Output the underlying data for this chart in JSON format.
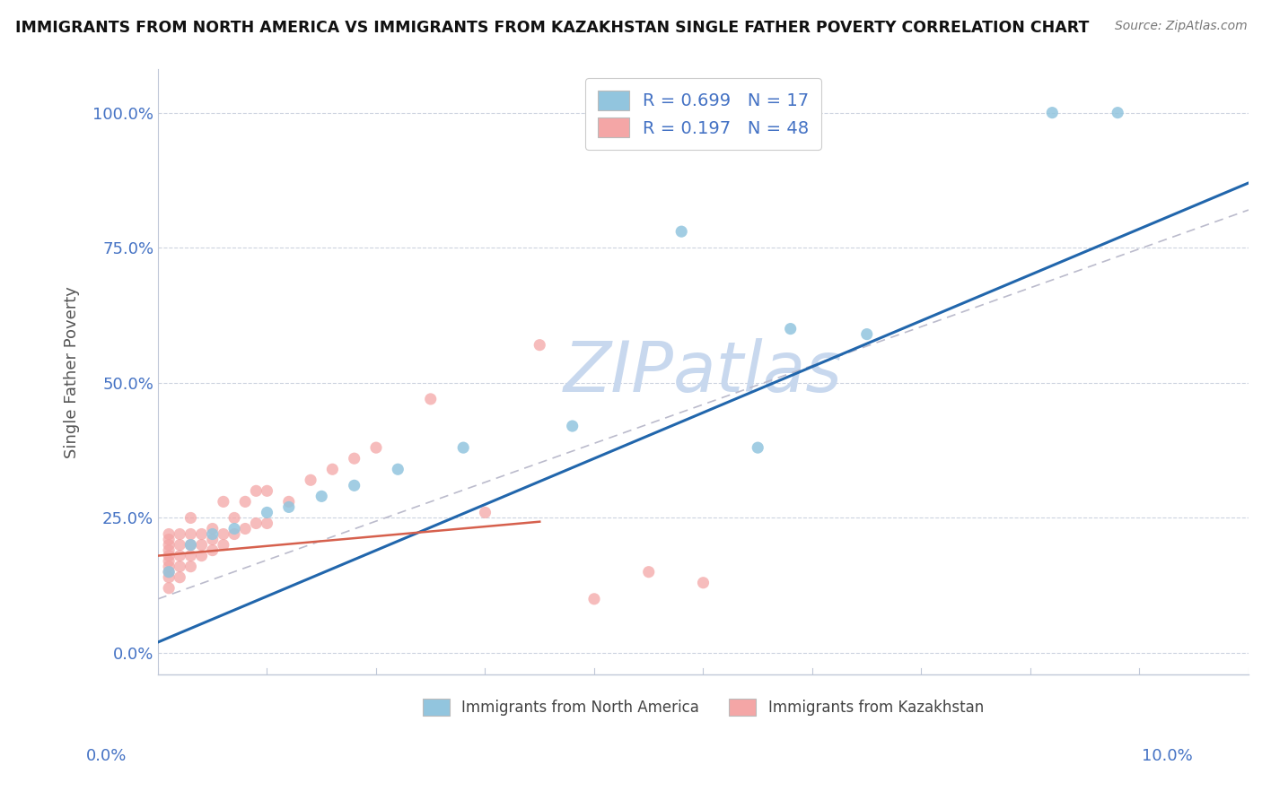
{
  "title": "IMMIGRANTS FROM NORTH AMERICA VS IMMIGRANTS FROM KAZAKHSTAN SINGLE FATHER POVERTY CORRELATION CHART",
  "source": "Source: ZipAtlas.com",
  "ylabel": "Single Father Poverty",
  "ytick_labels": [
    "0.0%",
    "25.0%",
    "50.0%",
    "75.0%",
    "100.0%"
  ],
  "ytick_values": [
    0.0,
    0.25,
    0.5,
    0.75,
    1.0
  ],
  "xlim": [
    0.0,
    0.1
  ],
  "ylim": [
    -0.04,
    1.08
  ],
  "r_north_america": 0.699,
  "n_north_america": 17,
  "r_kazakhstan": 0.197,
  "n_kazakhstan": 48,
  "color_north_america": "#92c5de",
  "color_kazakhstan": "#f4a6a6",
  "color_trendline_na": "#2166ac",
  "color_trendline_kz": "#d6604d",
  "color_trendline_dashed": "#bbbbcc",
  "watermark": "ZIPatlas",
  "watermark_color": "#c8d8ee",
  "na_intercept": 0.02,
  "na_slope": 8.5,
  "kz_intercept": 0.18,
  "kz_slope": 1.8,
  "na_x": [
    0.001,
    0.003,
    0.005,
    0.007,
    0.01,
    0.012,
    0.015,
    0.018,
    0.022,
    0.028,
    0.038,
    0.048,
    0.055,
    0.058,
    0.065,
    0.082,
    0.088
  ],
  "na_y": [
    0.15,
    0.2,
    0.22,
    0.23,
    0.26,
    0.27,
    0.29,
    0.31,
    0.34,
    0.38,
    0.42,
    0.78,
    0.38,
    0.6,
    0.59,
    1.0,
    1.0
  ],
  "kz_x": [
    0.001,
    0.001,
    0.001,
    0.001,
    0.001,
    0.001,
    0.001,
    0.001,
    0.001,
    0.001,
    0.002,
    0.002,
    0.002,
    0.002,
    0.002,
    0.003,
    0.003,
    0.003,
    0.003,
    0.003,
    0.004,
    0.004,
    0.004,
    0.005,
    0.005,
    0.005,
    0.006,
    0.006,
    0.006,
    0.007,
    0.007,
    0.008,
    0.008,
    0.009,
    0.009,
    0.01,
    0.01,
    0.012,
    0.014,
    0.016,
    0.018,
    0.02,
    0.025,
    0.03,
    0.035,
    0.04,
    0.045,
    0.05
  ],
  "kz_y": [
    0.12,
    0.14,
    0.15,
    0.16,
    0.17,
    0.18,
    0.19,
    0.2,
    0.21,
    0.22,
    0.14,
    0.16,
    0.18,
    0.2,
    0.22,
    0.16,
    0.18,
    0.2,
    0.22,
    0.25,
    0.18,
    0.2,
    0.22,
    0.19,
    0.21,
    0.23,
    0.2,
    0.22,
    0.28,
    0.22,
    0.25,
    0.23,
    0.28,
    0.24,
    0.3,
    0.24,
    0.3,
    0.28,
    0.32,
    0.34,
    0.36,
    0.38,
    0.47,
    0.26,
    0.57,
    0.1,
    0.15,
    0.13
  ]
}
